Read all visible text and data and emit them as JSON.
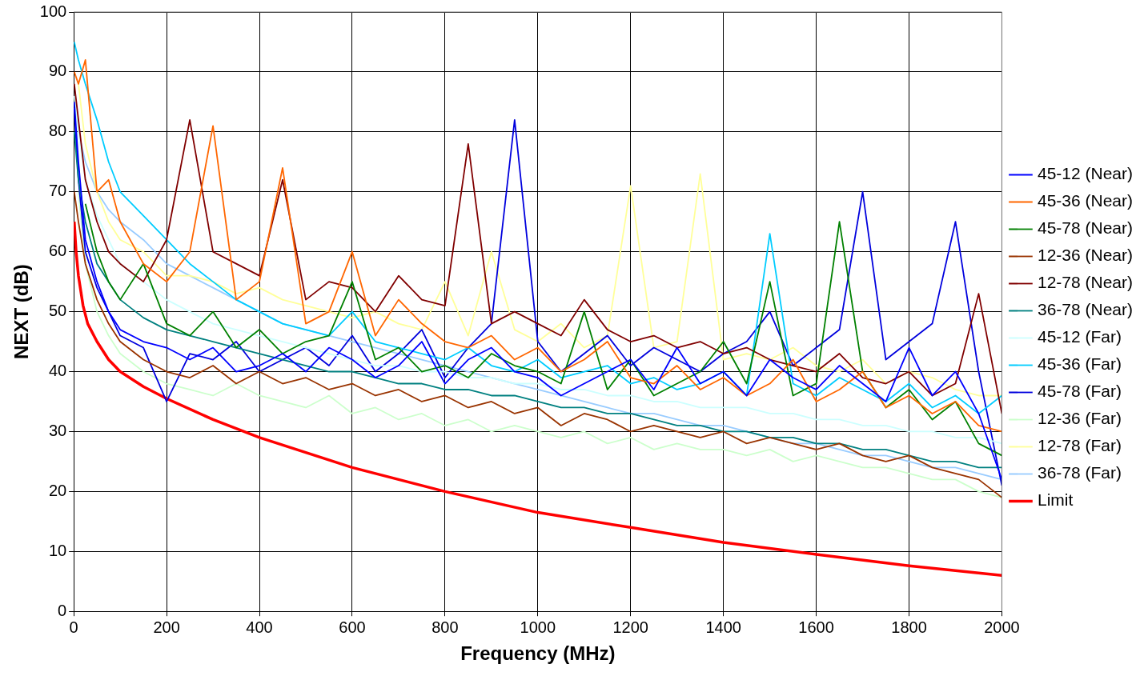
{
  "chart_data": {
    "type": "line",
    "xlabel": "Frequency (MHz)",
    "ylabel": "NEXT (dB)",
    "x": [
      1,
      10,
      25,
      50,
      75,
      100,
      150,
      200,
      250,
      300,
      350,
      400,
      450,
      500,
      550,
      600,
      650,
      700,
      750,
      800,
      850,
      900,
      950,
      1000,
      1050,
      1100,
      1150,
      1200,
      1250,
      1300,
      1350,
      1400,
      1450,
      1500,
      1550,
      1600,
      1650,
      1700,
      1750,
      1800,
      1850,
      1900,
      1950,
      2000
    ],
    "xlim": [
      0,
      2000
    ],
    "xticks": [
      0,
      200,
      400,
      600,
      800,
      1000,
      1200,
      1400,
      1600,
      1800,
      2000
    ],
    "ylim": [
      0,
      100
    ],
    "yticks": [
      0,
      10,
      20,
      30,
      40,
      50,
      60,
      70,
      80,
      90,
      100
    ],
    "grid": true,
    "legend": "right",
    "marker": "none",
    "line_style": "solid",
    "series": [
      {
        "name": "45-12 (Near)",
        "color": "#0000ff",
        "values": [
          85,
          75,
          62,
          55,
          50,
          47,
          45,
          44,
          42,
          44,
          40,
          41,
          43,
          40,
          44,
          42,
          39,
          41,
          45,
          38,
          42,
          44,
          40,
          39,
          36,
          38,
          40,
          42,
          37,
          44,
          38,
          40,
          36,
          42,
          39,
          37,
          41,
          38,
          35,
          44,
          36,
          40,
          33,
          22
        ]
      },
      {
        "name": "45-36 (Near)",
        "color": "#ff6600",
        "values": [
          90,
          88,
          92,
          70,
          72,
          65,
          58,
          55,
          60,
          81,
          52,
          55,
          74,
          48,
          50,
          60,
          46,
          52,
          48,
          45,
          44,
          46,
          42,
          44,
          40,
          42,
          45,
          39,
          38,
          41,
          37,
          39,
          36,
          38,
          42,
          35,
          37,
          40,
          34,
          36,
          33,
          35,
          31,
          30
        ]
      },
      {
        "name": "45-78 (Near)",
        "color": "#008000",
        "values": [
          null,
          null,
          68,
          60,
          55,
          52,
          58,
          48,
          46,
          50,
          44,
          47,
          43,
          45,
          46,
          55,
          42,
          44,
          40,
          41,
          39,
          43,
          41,
          40,
          38,
          50,
          37,
          42,
          36,
          38,
          40,
          45,
          38,
          55,
          36,
          38,
          65,
          40,
          34,
          37,
          32,
          35,
          28,
          26
        ]
      },
      {
        "name": "12-36 (Near)",
        "color": "#993300",
        "values": [
          70,
          65,
          58,
          52,
          48,
          45,
          42,
          40,
          39,
          41,
          38,
          40,
          38,
          39,
          37,
          38,
          36,
          37,
          35,
          36,
          34,
          35,
          33,
          34,
          31,
          33,
          32,
          30,
          31,
          30,
          29,
          30,
          28,
          29,
          28,
          27,
          28,
          26,
          25,
          26,
          24,
          23,
          22,
          19
        ]
      },
      {
        "name": "12-78 (Near)",
        "color": "#800000",
        "values": [
          88,
          82,
          72,
          65,
          60,
          58,
          55,
          62,
          82,
          60,
          58,
          56,
          72,
          52,
          55,
          54,
          50,
          56,
          52,
          51,
          78,
          48,
          50,
          48,
          46,
          52,
          47,
          45,
          46,
          44,
          45,
          43,
          44,
          42,
          41,
          40,
          43,
          39,
          38,
          40,
          36,
          38,
          53,
          33
        ]
      },
      {
        "name": "36-78 (Near)",
        "color": "#008080",
        "values": [
          80,
          72,
          65,
          58,
          55,
          52,
          49,
          47,
          46,
          45,
          44,
          43,
          42,
          41,
          40,
          40,
          39,
          38,
          38,
          37,
          37,
          36,
          36,
          35,
          34,
          34,
          33,
          33,
          32,
          31,
          31,
          30,
          30,
          29,
          29,
          28,
          28,
          27,
          27,
          26,
          25,
          25,
          24,
          24
        ]
      },
      {
        "name": "45-12 (Far)",
        "color": "#ccffff",
        "values": [
          86,
          80,
          72,
          66,
          62,
          58,
          55,
          52,
          50,
          48,
          47,
          46,
          45,
          44,
          43,
          42,
          41,
          41,
          40,
          40,
          39,
          39,
          38,
          38,
          37,
          37,
          36,
          36,
          35,
          35,
          34,
          34,
          34,
          33,
          33,
          32,
          32,
          31,
          31,
          30,
          30,
          29,
          29,
          28
        ]
      },
      {
        "name": "45-36 (Far)",
        "color": "#00ccff",
        "values": [
          95,
          92,
          88,
          82,
          75,
          70,
          66,
          62,
          58,
          55,
          52,
          50,
          48,
          47,
          46,
          50,
          45,
          44,
          43,
          42,
          44,
          41,
          40,
          42,
          39,
          40,
          41,
          38,
          39,
          37,
          38,
          40,
          36,
          63,
          38,
          36,
          39,
          37,
          35,
          38,
          34,
          36,
          33,
          36
        ]
      },
      {
        "name": "45-78 (Far)",
        "color": "#0000dd",
        "values": [
          84,
          72,
          60,
          54,
          50,
          46,
          44,
          35,
          43,
          42,
          45,
          40,
          42,
          44,
          41,
          46,
          40,
          43,
          47,
          39,
          44,
          48,
          82,
          45,
          40,
          43,
          46,
          41,
          44,
          42,
          40,
          43,
          45,
          50,
          41,
          44,
          47,
          70,
          42,
          45,
          48,
          65,
          40,
          21
        ]
      },
      {
        "name": "12-36 (Far)",
        "color": "#ccffcc",
        "values": [
          null,
          70,
          58,
          50,
          46,
          43,
          40,
          38,
          37,
          36,
          38,
          36,
          35,
          34,
          36,
          33,
          34,
          32,
          33,
          31,
          32,
          30,
          31,
          30,
          29,
          30,
          28,
          29,
          27,
          28,
          27,
          27,
          26,
          27,
          25,
          26,
          25,
          24,
          24,
          23,
          22,
          22,
          20,
          19
        ]
      },
      {
        "name": "12-78 (Far)",
        "color": "#ffff99",
        "values": [
          null,
          88,
          78,
          70,
          65,
          62,
          60,
          56,
          56,
          55,
          53,
          54,
          52,
          51,
          50,
          49,
          50,
          48,
          47,
          55,
          46,
          60,
          47,
          45,
          48,
          44,
          46,
          71,
          44,
          45,
          73,
          42,
          43,
          42,
          44,
          41,
          40,
          42,
          38,
          40,
          39,
          37,
          36,
          36
        ]
      },
      {
        "name": "36-78 (Far)",
        "color": "#99ccff",
        "values": [
          null,
          80,
          75,
          70,
          67,
          65,
          62,
          58,
          56,
          54,
          52,
          50,
          48,
          47,
          46,
          45,
          44,
          43,
          42,
          41,
          40,
          39,
          38,
          37,
          36,
          35,
          34,
          33,
          33,
          32,
          31,
          31,
          30,
          29,
          28,
          28,
          27,
          26,
          26,
          25,
          24,
          24,
          23,
          22
        ]
      },
      {
        "name": "Limit",
        "color": "#ff0000",
        "x": [
          1,
          5,
          10,
          20,
          30,
          50,
          75,
          100,
          150,
          200,
          300,
          400,
          500,
          600,
          800,
          1000,
          1200,
          1400,
          1600,
          1800,
          2000
        ],
        "values": [
          65,
          60,
          56,
          51,
          48,
          45,
          42,
          40,
          37.5,
          35.5,
          32,
          29,
          26.5,
          24,
          20,
          16.5,
          14,
          11.5,
          9.5,
          7.6,
          6
        ]
      }
    ]
  }
}
